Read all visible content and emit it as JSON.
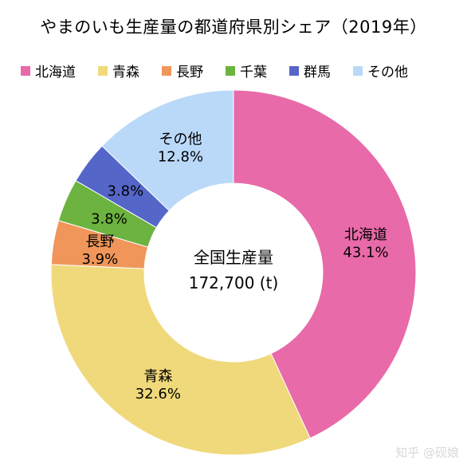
{
  "chart_data": {
    "type": "pie",
    "variant": "donut",
    "title": "やまのいも生産量の都道府県別シェア（2019年）",
    "center_label_line1": "全国生産量",
    "center_label_line2": "172,700 (t)",
    "legend_placement": "top",
    "categories": [
      "北海道",
      "青森",
      "長野",
      "千葉",
      "群馬",
      "その他"
    ],
    "values": [
      43.1,
      32.6,
      3.9,
      3.8,
      3.8,
      12.8
    ],
    "value_labels": [
      "43.1%",
      "32.6%",
      "3.9%",
      "3.8%",
      "3.8%",
      "12.8%"
    ],
    "colors": [
      "#e86aa8",
      "#f0d97b",
      "#f0965a",
      "#6cb33f",
      "#5566c9",
      "#bad9f8"
    ]
  },
  "watermark": "知乎 @砚娘"
}
